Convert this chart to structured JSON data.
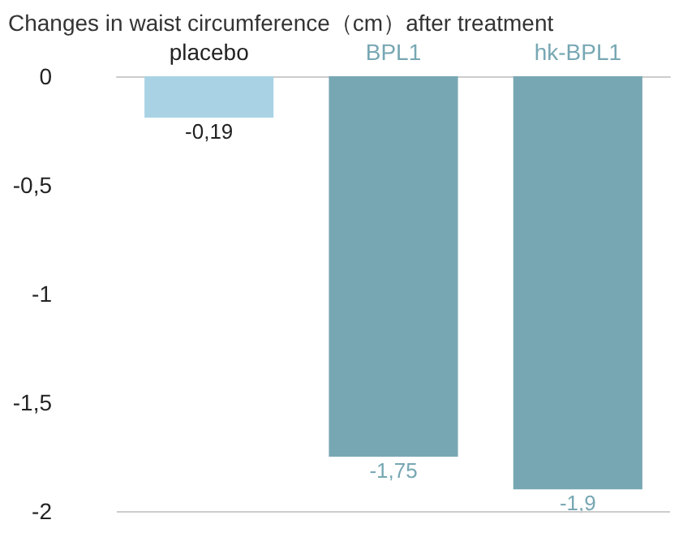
{
  "chart_data": {
    "type": "bar",
    "title": "Changes in waist circumference（cm）after treatment",
    "categories": [
      "placebo",
      "BPL1",
      "hk-BPL1"
    ],
    "values": [
      -0.19,
      -1.75,
      -1.9
    ],
    "colors": [
      "#a9d3e5",
      "#77a7b3",
      "#77a7b3"
    ],
    "value_labels": [
      "-0,19",
      "-1,75",
      "-1,9"
    ],
    "ylim": [
      -2,
      0
    ],
    "yticks": [
      {
        "value": -2,
        "label": "-2"
      },
      {
        "value": -1.5,
        "label": "-1,5"
      },
      {
        "value": -1,
        "label": "-1"
      },
      {
        "value": -0.5,
        "label": "-0,5"
      },
      {
        "value": 0,
        "label": "0"
      }
    ],
    "ref_lines": [
      {
        "axis": "y",
        "value": -2,
        "color": "#cccccc"
      }
    ],
    "grid": false
  }
}
